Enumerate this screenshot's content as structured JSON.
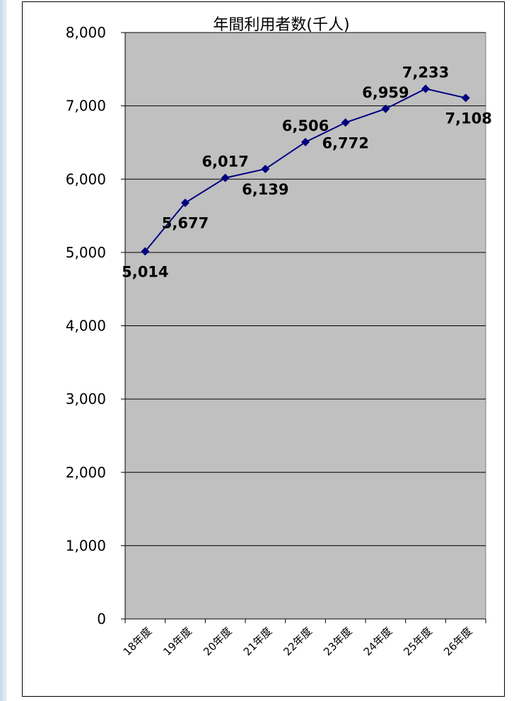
{
  "chart_data": {
    "type": "line",
    "title": "年間利用者数(千人)",
    "categories": [
      "18年度",
      "19年度",
      "20年度",
      "21年度",
      "22年度",
      "23年度",
      "24年度",
      "25年度",
      "26年度"
    ],
    "series": [
      {
        "values": [
          5014,
          5677,
          6017,
          6139,
          6506,
          6772,
          6959,
          7233,
          7108
        ],
        "labels": [
          "5,014",
          "5,677",
          "6,017",
          "6,139",
          "6,506",
          "6,772",
          "6,959",
          "7,233",
          "7,108"
        ]
      }
    ],
    "ylim": [
      0,
      8000
    ],
    "yticks": [
      0,
      1000,
      2000,
      3000,
      4000,
      5000,
      6000,
      7000,
      8000
    ],
    "ytick_labels": [
      "0",
      "1,000",
      "2,000",
      "3,000",
      "4,000",
      "5,000",
      "6,000",
      "7,000",
      "8,000"
    ],
    "grid": true,
    "legend": "none",
    "colors": {
      "plot_background": "#c0c0c0",
      "line": "#000080",
      "marker": "#000080",
      "gridline": "#000000"
    },
    "marker": "diamond"
  }
}
